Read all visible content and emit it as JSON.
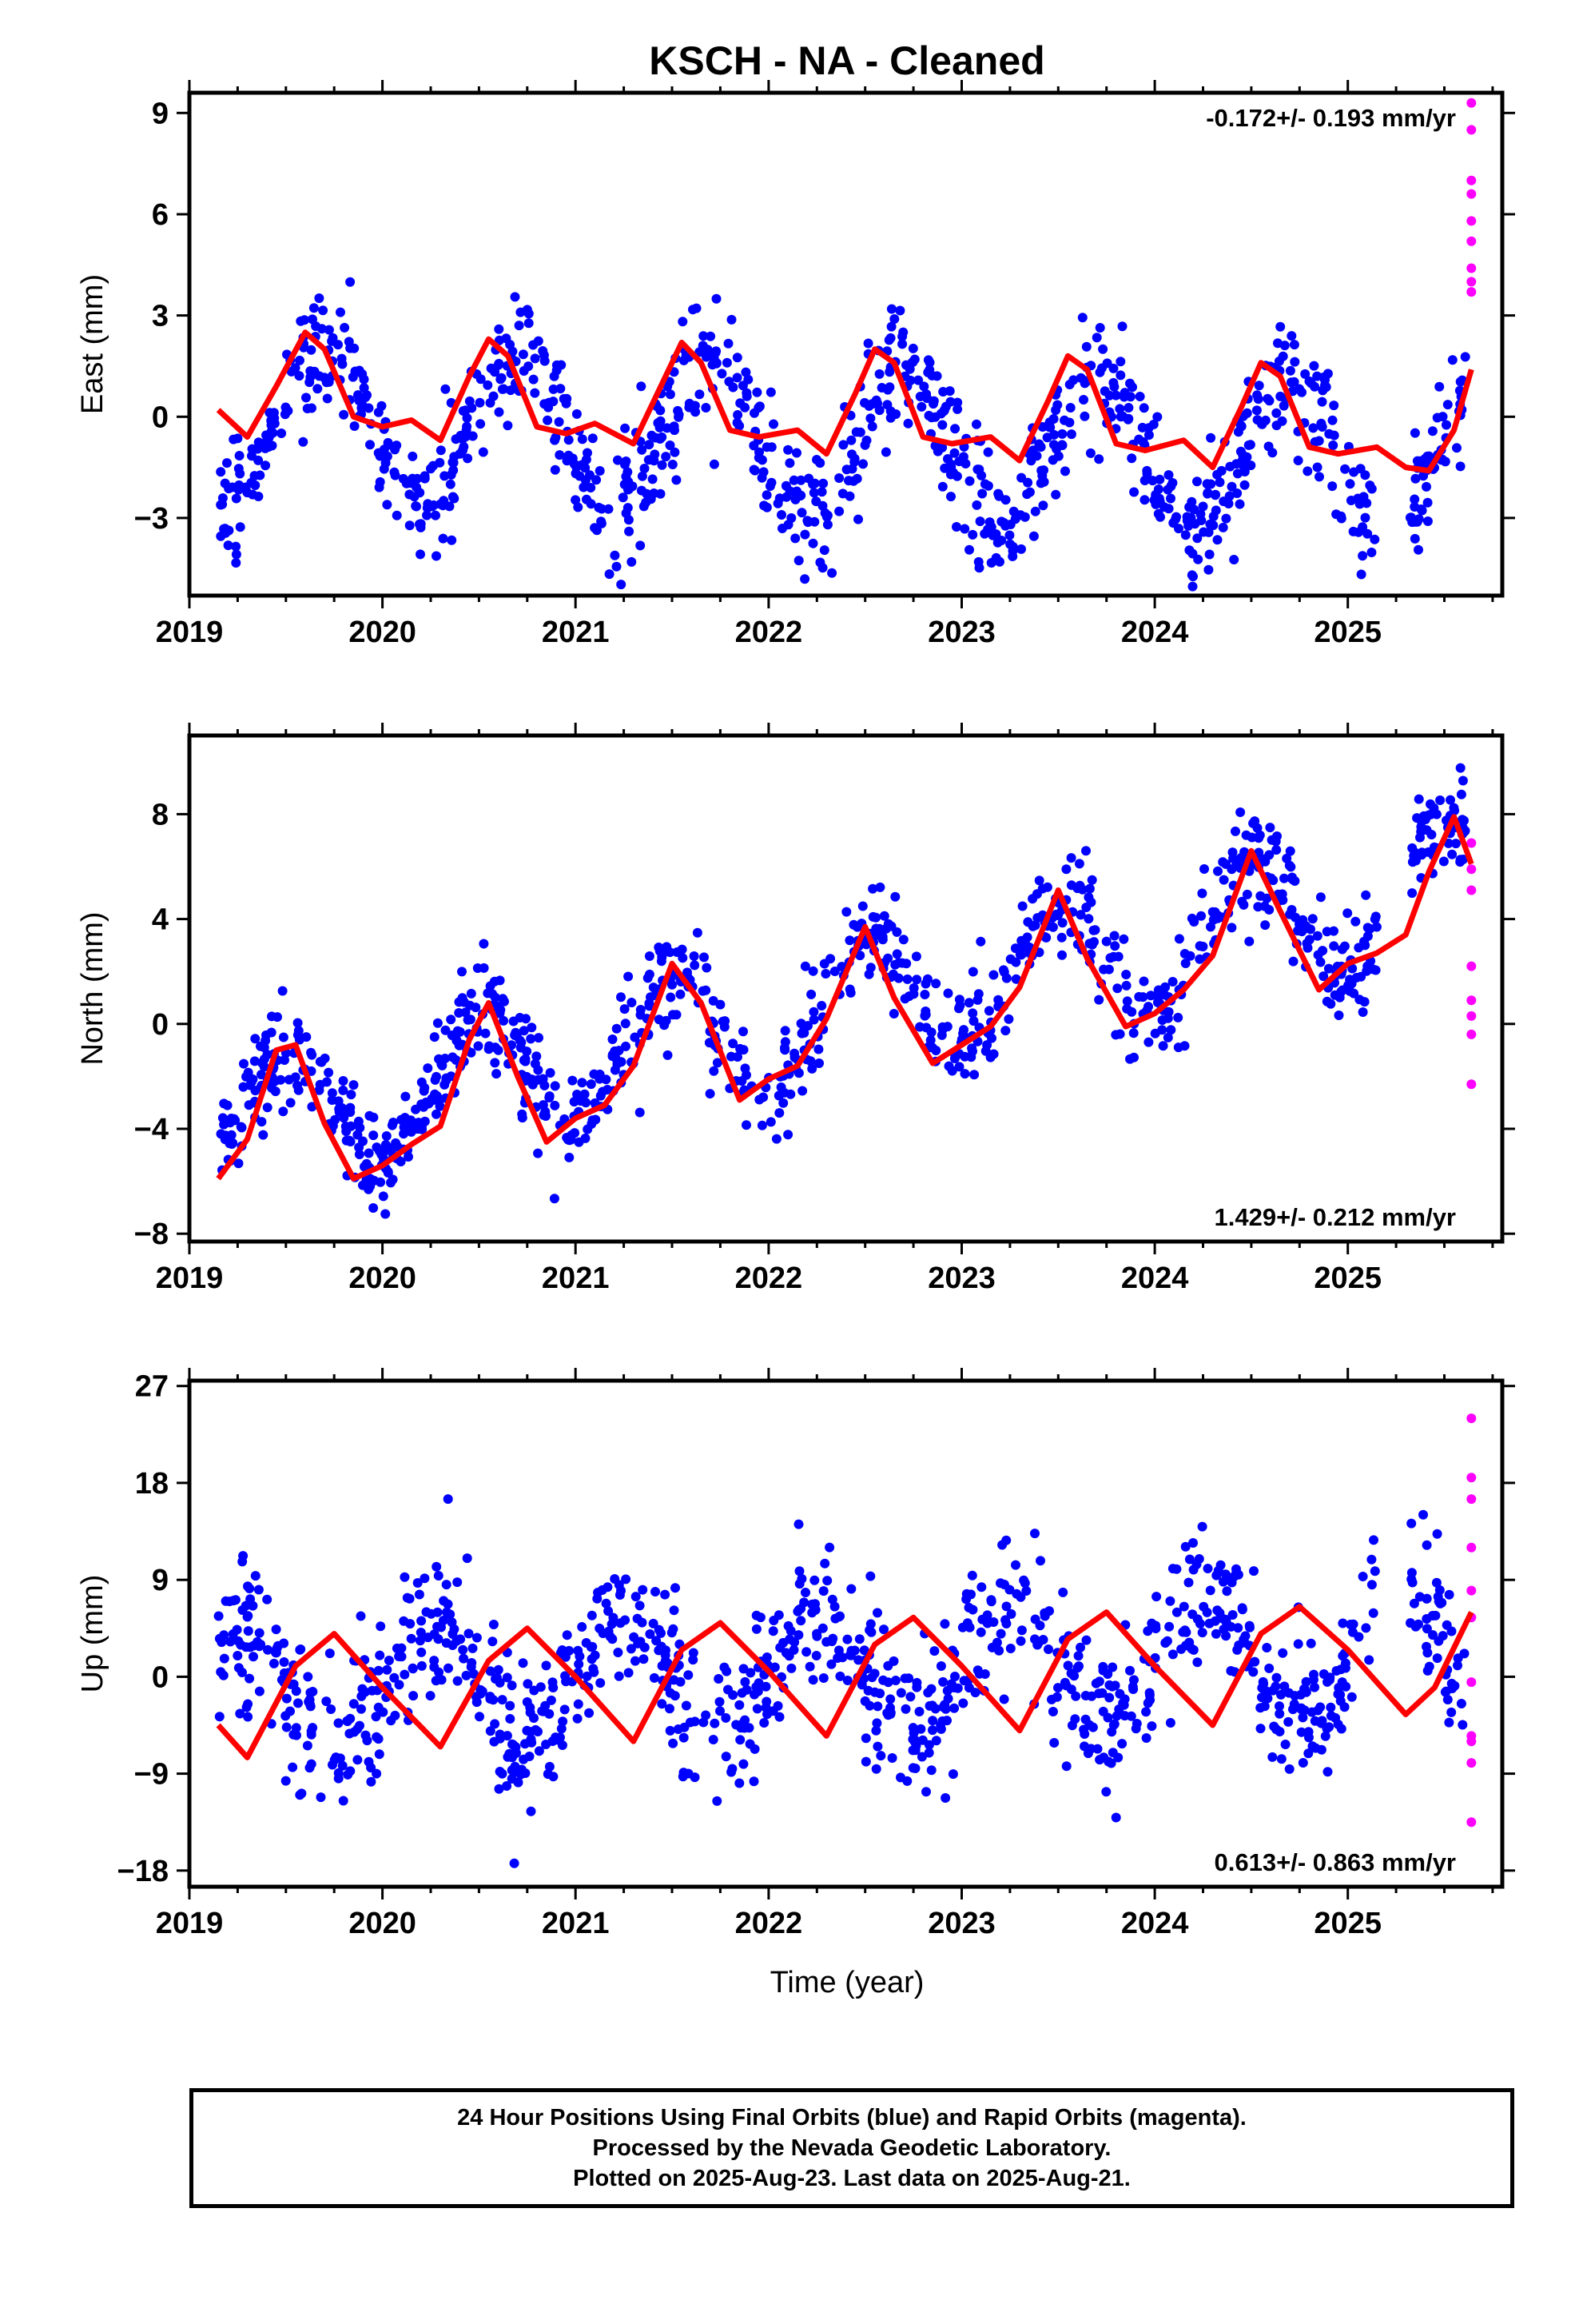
{
  "chart_data": {
    "type": "scatter",
    "title": "KSCH  - NA - Cleaned",
    "xlabel": "Time (year)",
    "xlim": [
      2019.0,
      2025.8
    ],
    "x_ticks": [
      2019,
      2020,
      2021,
      2022,
      2023,
      2024,
      2025
    ],
    "x_tick_labels": [
      "2019",
      "2020",
      "2021",
      "2022",
      "2023",
      "2024",
      "2025"
    ],
    "legend_colors": {
      "final_orbits": "#0000ff",
      "rapid_orbits": "#ff00ff",
      "model_fit": "#ff0000"
    },
    "data_start": 2019.15,
    "data_end": 2025.64,
    "panels": [
      {
        "ylabel": "East (mm)",
        "ylim": [
          -5.3,
          9.6
        ],
        "y_ticks": [
          9,
          6,
          3,
          0,
          -3
        ],
        "y_tick_labels": [
          "9",
          "6",
          "3",
          "0",
          "−3"
        ],
        "rate_text": "-0.172+/- 0.193 mm/yr",
        "rate_position": "top-right",
        "model": {
          "x": [
            2019.15,
            2019.3,
            2019.45,
            2019.6,
            2019.7,
            2019.85,
            2020.0,
            2020.15,
            2020.3,
            2020.45,
            2020.55,
            2020.65,
            2020.8,
            2020.95,
            2021.1,
            2021.3,
            2021.45,
            2021.55,
            2021.65,
            2021.8,
            2021.95,
            2022.15,
            2022.3,
            2022.45,
            2022.55,
            2022.65,
            2022.8,
            2022.95,
            2023.15,
            2023.3,
            2023.45,
            2023.55,
            2023.65,
            2023.8,
            2023.95,
            2024.15,
            2024.3,
            2024.45,
            2024.55,
            2024.65,
            2024.8,
            2024.95,
            2025.15,
            2025.3,
            2025.42,
            2025.55,
            2025.64
          ],
          "y": [
            0.2,
            -0.6,
            0.9,
            2.5,
            2.0,
            0.0,
            -0.3,
            -0.1,
            -0.7,
            1.2,
            2.3,
            1.8,
            -0.3,
            -0.5,
            -0.2,
            -0.8,
            1.0,
            2.2,
            1.6,
            -0.4,
            -0.6,
            -0.4,
            -1.1,
            0.7,
            2.0,
            1.6,
            -0.6,
            -0.8,
            -0.6,
            -1.3,
            0.5,
            1.8,
            1.4,
            -0.8,
            -1.0,
            -0.7,
            -1.5,
            0.3,
            1.6,
            1.2,
            -0.9,
            -1.1,
            -0.9,
            -1.5,
            -1.6,
            -0.4,
            1.4
          ]
        },
        "scatter": {
          "amp": 2.3,
          "base": -0.18,
          "trend": -0.17,
          "phase": 0.45,
          "noise": 0.9,
          "n": 1050,
          "rapid": [
            9.3,
            8.5,
            7.0,
            6.6,
            5.8,
            5.2,
            4.4,
            4.0,
            3.7
          ]
        }
      },
      {
        "ylabel": "North (mm)",
        "ylim": [
          -8.3,
          11.0
        ],
        "y_ticks": [
          8,
          4,
          0,
          -4,
          -8
        ],
        "y_tick_labels": [
          "8",
          "4",
          "0",
          "−4",
          "−8"
        ],
        "rate_text": "1.429+/- 0.212 mm/yr",
        "rate_position": "bottom-right",
        "model": {
          "x": [
            2019.15,
            2019.3,
            2019.45,
            2019.55,
            2019.7,
            2019.85,
            2020.0,
            2020.15,
            2020.3,
            2020.45,
            2020.55,
            2020.7,
            2020.85,
            2021.0,
            2021.15,
            2021.3,
            2021.5,
            2021.65,
            2021.85,
            2022.0,
            2022.15,
            2022.3,
            2022.5,
            2022.65,
            2022.85,
            2023.0,
            2023.15,
            2023.3,
            2023.5,
            2023.65,
            2023.85,
            2024.0,
            2024.15,
            2024.3,
            2024.5,
            2024.65,
            2024.85,
            2025.0,
            2025.15,
            2025.3,
            2025.42,
            2025.55,
            2025.64
          ],
          "y": [
            -5.9,
            -4.4,
            -1.0,
            -0.8,
            -3.8,
            -5.9,
            -5.4,
            -4.6,
            -3.9,
            -0.6,
            0.8,
            -2.0,
            -4.5,
            -3.6,
            -3.1,
            -1.6,
            2.3,
            0.8,
            -2.9,
            -2.1,
            -1.6,
            0.2,
            3.7,
            1.0,
            -1.5,
            -0.8,
            -0.1,
            1.4,
            5.1,
            2.5,
            -0.1,
            0.4,
            1.3,
            2.6,
            6.6,
            4.3,
            1.3,
            2.3,
            2.7,
            3.4,
            5.8,
            7.9,
            6.1
          ]
        },
        "scatter": {
          "amp": 2.5,
          "base": -4.2,
          "trend": 1.43,
          "phase": 0.25,
          "noise": 1.0,
          "n": 1050,
          "rapid": [
            6.9,
            5.9,
            5.1,
            2.2,
            0.9,
            0.3,
            -0.4,
            -2.3
          ]
        }
      },
      {
        "ylabel": "Up (mm)",
        "ylim": [
          -19.5,
          27.5
        ],
        "y_ticks": [
          27,
          18,
          9,
          0,
          -9,
          -18
        ],
        "y_tick_labels": [
          "27",
          "18",
          "9",
          "0",
          "−9",
          "−18"
        ],
        "rate_text": "0.613+/- 0.863 mm/yr",
        "rate_position": "bottom-right",
        "model": {
          "x": [
            2019.15,
            2019.3,
            2019.55,
            2019.75,
            2020.0,
            2020.3,
            2020.55,
            2020.75,
            2021.0,
            2021.3,
            2021.55,
            2021.75,
            2022.0,
            2022.3,
            2022.55,
            2022.75,
            2023.0,
            2023.3,
            2023.55,
            2023.75,
            2024.0,
            2024.3,
            2024.55,
            2024.75,
            2025.0,
            2025.3,
            2025.45,
            2025.64
          ],
          "y": [
            -4.5,
            -7.5,
            1.0,
            4.0,
            -1.0,
            -6.5,
            1.5,
            4.5,
            0.0,
            -6.0,
            2.5,
            5.0,
            0.5,
            -5.5,
            3.0,
            5.5,
            1.0,
            -5.0,
            3.5,
            6.0,
            1.0,
            -4.5,
            4.0,
            6.5,
            2.5,
            -3.5,
            -1.0,
            6.0
          ]
        },
        "scatter": {
          "amp": 5.5,
          "base": -1.5,
          "trend": 0.61,
          "phase": 0.0,
          "noise": 3.5,
          "n": 1050,
          "rapid": [
            24.0,
            18.5,
            16.5,
            12.0,
            8.0,
            5.5,
            -0.5,
            -5.5,
            -6.0,
            -8.0,
            -13.5
          ]
        }
      }
    ]
  },
  "footer": {
    "line1": "24 Hour Positions Using Final Orbits (blue) and Rapid Orbits (magenta).",
    "line2": "Processed by the Nevada Geodetic Laboratory.",
    "line3": "Plotted on 2025-Aug-23. Last data on 2025-Aug-21."
  }
}
